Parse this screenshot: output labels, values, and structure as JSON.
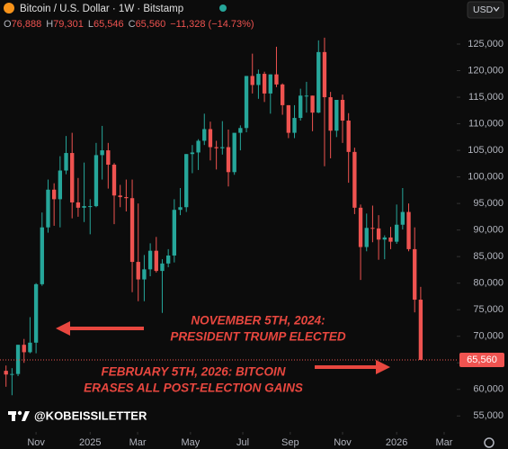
{
  "chart_data": {
    "type": "candlestick",
    "title": "Bitcoin / U.S. Dollar · 1W · Bitstamp",
    "ohlc_legend": [
      {
        "key": "O",
        "value": "76,888"
      },
      {
        "key": "H",
        "value": "79,301"
      },
      {
        "key": "L",
        "value": "65,546"
      },
      {
        "key": "C",
        "value": "65,560"
      }
    ],
    "change": "−11,328 (−14.73%)",
    "currency": "USD",
    "up_color": "#26a69a",
    "down_color": "#ef5350",
    "open": [
      63500,
      62800,
      62900,
      68400,
      67000,
      68800,
      79800,
      90500,
      97600,
      95800,
      101200,
      104500,
      95200,
      94200,
      94500,
      94500,
      104100,
      105000,
      102300,
      96500,
      96200,
      96000,
      84000,
      80700,
      82600,
      86100,
      82300,
      83700,
      85200,
      93800,
      94300,
      104300,
      104600,
      106800,
      109000,
      105600,
      105400,
      105600,
      100900,
      108300,
      109200,
      119000,
      117300,
      119400,
      115700,
      119300,
      117400,
      113500,
      108300,
      111100,
      115300,
      115300,
      112100,
      123500,
      115000,
      108700,
      114500,
      110600,
      104700,
      94200,
      86800,
      90400,
      90300,
      88200,
      88600,
      87800,
      91000,
      93400,
      86400,
      76888
    ],
    "high": [
      64500,
      64000,
      68400,
      69500,
      73600,
      80000,
      93300,
      99500,
      98800,
      103900,
      107700,
      108300,
      99800,
      102700,
      95800,
      106400,
      109600,
      106400,
      102600,
      98500,
      99500,
      99500,
      95000,
      85300,
      87500,
      88700,
      84500,
      86400,
      95800,
      97900,
      104300,
      106000,
      107100,
      111900,
      110400,
      106800,
      110500,
      108900,
      108200,
      109700,
      119000,
      123200,
      120200,
      119800,
      119300,
      124500,
      117600,
      113500,
      113500,
      116600,
      117900,
      115300,
      125700,
      126200,
      116000,
      114000,
      115500,
      112000,
      105500,
      94800,
      93100,
      94600,
      92800,
      89000,
      90600,
      94800,
      97900,
      95000,
      90500,
      79301
    ],
    "low": [
      60500,
      58900,
      62500,
      65000,
      66800,
      66800,
      79500,
      89500,
      90800,
      90500,
      100500,
      92200,
      92500,
      91500,
      89200,
      94300,
      99500,
      97800,
      91100,
      94300,
      93500,
      78300,
      76600,
      76600,
      81300,
      82000,
      74400,
      83000,
      83900,
      92800,
      93400,
      100700,
      101300,
      106000,
      103100,
      101400,
      104200,
      98200,
      100400,
      105000,
      108400,
      115700,
      114700,
      114100,
      111900,
      116900,
      111700,
      107300,
      107300,
      110600,
      112100,
      108600,
      112000,
      102000,
      103500,
      107500,
      106400,
      98900,
      93000,
      80600,
      86000,
      87700,
      84400,
      84500,
      86400,
      87400,
      90100,
      86000,
      74500,
      65546
    ],
    "close": [
      62800,
      62900,
      68400,
      67000,
      68800,
      79800,
      90500,
      97600,
      95800,
      101200,
      104500,
      95200,
      94200,
      94500,
      94500,
      104100,
      105000,
      102300,
      96500,
      96200,
      96000,
      84000,
      80700,
      82600,
      86100,
      82300,
      83700,
      85200,
      93800,
      94300,
      104300,
      104600,
      106800,
      109000,
      105600,
      105400,
      105600,
      100900,
      108300,
      109200,
      119000,
      117300,
      119400,
      115700,
      119300,
      117400,
      113500,
      108300,
      111100,
      115300,
      115300,
      112100,
      123500,
      115000,
      108700,
      114500,
      110600,
      104700,
      94200,
      86800,
      90400,
      90300,
      88200,
      88600,
      87800,
      91000,
      93400,
      86400,
      76888,
      65560
    ],
    "xlim": [
      -1,
      75
    ],
    "xticks": [
      {
        "value": 5,
        "label": "Nov"
      },
      {
        "value": 14,
        "label": "2025"
      },
      {
        "value": 21.9,
        "label": "Mar"
      },
      {
        "value": 30.7,
        "label": "May"
      },
      {
        "value": 39.4,
        "label": "Jul"
      },
      {
        "value": 47.3,
        "label": "Sep"
      },
      {
        "value": 56,
        "label": "Nov"
      },
      {
        "value": 65,
        "label": "2026"
      },
      {
        "value": 72.9,
        "label": "Mar"
      }
    ],
    "ylim": [
      52000,
      133300
    ],
    "yticks": [
      {
        "value": 55000,
        "label": "55,000"
      },
      {
        "value": 60000,
        "label": "60,000"
      },
      {
        "value": 65000,
        "label": "65,000"
      },
      {
        "value": 70000,
        "label": "70,000"
      },
      {
        "value": 75000,
        "label": "75,000"
      },
      {
        "value": 80000,
        "label": "80,000"
      },
      {
        "value": 85000,
        "label": "85,000"
      },
      {
        "value": 90000,
        "label": "90,000"
      },
      {
        "value": 95000,
        "label": "95,000"
      },
      {
        "value": 100000,
        "label": "100,000"
      },
      {
        "value": 105000,
        "label": "105,000"
      },
      {
        "value": 110000,
        "label": "110,000"
      },
      {
        "value": 115000,
        "label": "115,000"
      },
      {
        "value": 120000,
        "label": "120,000"
      },
      {
        "value": 125000,
        "label": "125,000"
      }
    ],
    "last_price": {
      "value": 65560,
      "label": "65,560"
    },
    "annotations": [
      {
        "lines": [
          "NOVEMBER 5TH, 2024:",
          "PRESIDENT TRUMP ELECTED"
        ]
      },
      {
        "lines": [
          "FEBRUARY 5TH, 2026: BITCOIN",
          "ERASES ALL POST-ELECTION GAINS"
        ]
      }
    ],
    "watermark": "@KOBEISSILETTER"
  }
}
